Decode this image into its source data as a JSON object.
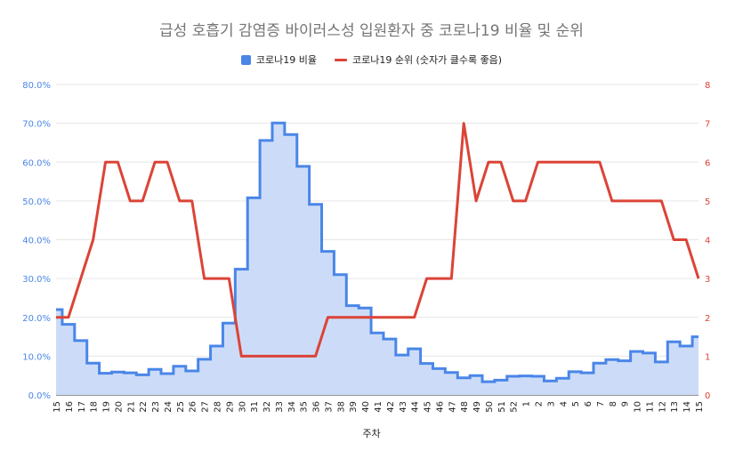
{
  "chart_data": {
    "type": "area",
    "title": "급성 호흡기 감염증 바이러스성 입원환자 중 코로나19 비율 및 순위",
    "xlabel": "주차",
    "ylabel": "",
    "y2label": "",
    "categories": [
      "15",
      "16",
      "17",
      "18",
      "19",
      "20",
      "21",
      "22",
      "23",
      "24",
      "25",
      "26",
      "27",
      "28",
      "29",
      "30",
      "31",
      "32",
      "33",
      "34",
      "35",
      "36",
      "37",
      "38",
      "39",
      "40",
      "41",
      "42",
      "43",
      "44",
      "45",
      "46",
      "47",
      "48",
      "49",
      "50",
      "51",
      "52",
      "1",
      "2",
      "3",
      "4",
      "5",
      "6",
      "7",
      "8",
      "9",
      "10",
      "11",
      "12",
      "13",
      "14",
      "15"
    ],
    "ylim": [
      0,
      80
    ],
    "yticks": [
      "0.0%",
      "10.0%",
      "20.0%",
      "30.0%",
      "40.0%",
      "50.0%",
      "60.0%",
      "70.0%",
      "80.0%"
    ],
    "y2lim": [
      0,
      8
    ],
    "y2ticks": [
      "0",
      "1",
      "2",
      "3",
      "4",
      "5",
      "6",
      "7",
      "8"
    ],
    "series": [
      {
        "name": "코로나19 비율",
        "axis": "left",
        "type": "stepped-area",
        "color": "#4a86e8",
        "fill": "#c9daf8",
        "values": [
          22,
          18.2,
          14,
          8.2,
          5.6,
          5.9,
          5.7,
          5.2,
          6.6,
          5.5,
          7.4,
          6.2,
          9.2,
          12.6,
          18.5,
          32.4,
          50.8,
          65.6,
          70.1,
          67.1,
          58.9,
          49.1,
          37,
          31,
          23,
          22.4,
          16,
          14.4,
          10.3,
          11.9,
          8.1,
          6.8,
          5.8,
          4.4,
          5,
          3.4,
          3.8,
          4.8,
          4.9,
          4.8,
          3.6,
          4.3,
          6,
          5.7,
          8.2,
          9.1,
          8.8,
          11.2,
          10.8,
          8.5,
          13.7,
          12.6,
          15
        ]
      },
      {
        "name": "코로나19 순위 (숫자가 클수록 좋음)",
        "axis": "right",
        "type": "line",
        "color": "#db4437",
        "values": [
          2,
          2,
          3,
          4,
          6,
          6,
          5,
          5,
          6,
          6,
          5,
          5,
          3,
          3,
          3,
          1,
          1,
          1,
          1,
          1,
          1,
          1,
          2,
          2,
          2,
          2,
          2,
          2,
          2,
          2,
          3,
          3,
          3,
          7,
          5,
          6,
          6,
          5,
          5,
          6,
          6,
          6,
          6,
          6,
          6,
          5,
          5,
          5,
          5,
          5,
          4,
          4,
          3
        ]
      }
    ],
    "grid": true,
    "legend_position": "top"
  },
  "legend": {
    "ratio_label": "코로나19 비율",
    "rank_label": "코로나19 순위 (숫자가 클수록 좋음)"
  },
  "colors": {
    "ratio_line": "#4a86e8",
    "ratio_fill": "#c9daf8",
    "rank_line": "#db4437",
    "left_axis_text": "#4a86e8",
    "right_axis_text": "#db4437",
    "grid": "#e6e6e6"
  }
}
